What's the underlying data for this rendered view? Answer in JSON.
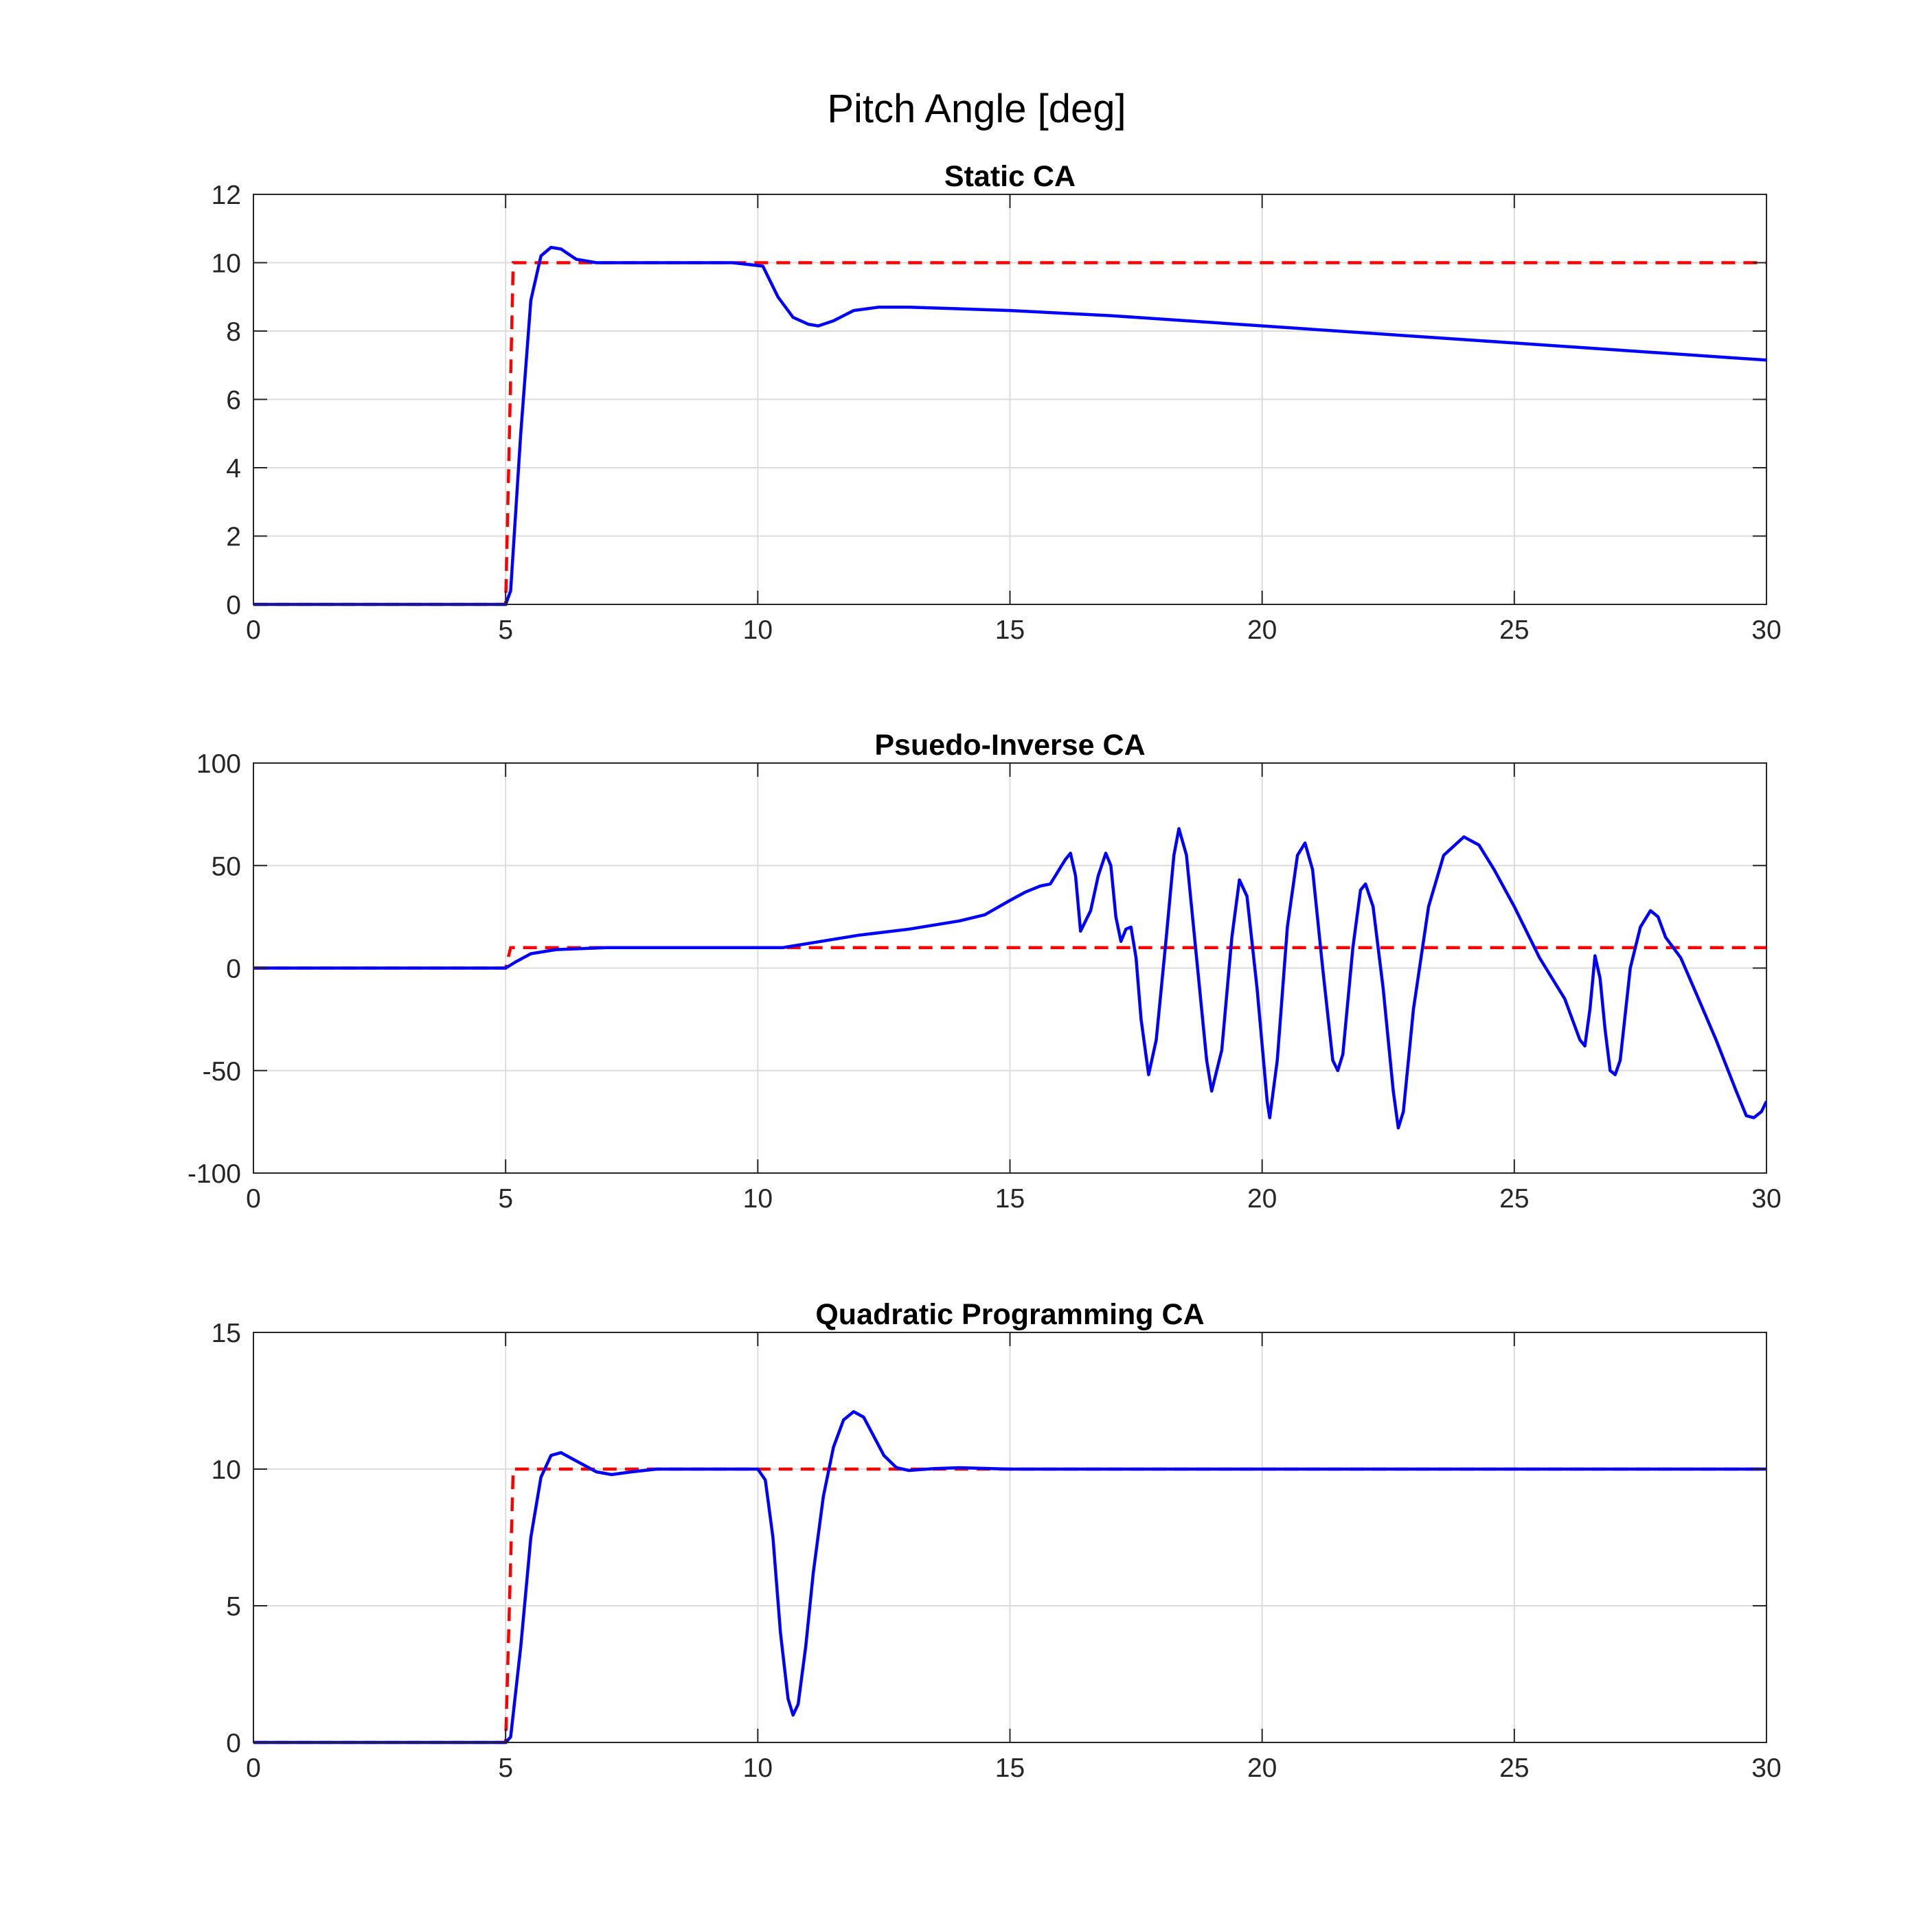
{
  "figure": {
    "title": "Pitch Angle [deg]"
  },
  "colors": {
    "reference": "#ff0000",
    "response": "#0000ff"
  },
  "chart_data": [
    {
      "type": "line",
      "title": "Static CA",
      "xlim": [
        0,
        30
      ],
      "ylim": [
        0,
        12
      ],
      "xticks": [
        0,
        5,
        10,
        15,
        20,
        25,
        30
      ],
      "yticks": [
        0,
        2,
        4,
        6,
        8,
        10,
        12
      ],
      "grid": true,
      "series": [
        {
          "style": "dashed",
          "color": "#ff0000",
          "x": [
            0,
            5,
            5,
            5.15,
            30
          ],
          "y": [
            0,
            0,
            0,
            10,
            10
          ]
        },
        {
          "style": "solid",
          "color": "#0000ff",
          "x": [
            0,
            5,
            5.1,
            5.3,
            5.5,
            5.7,
            5.9,
            6.1,
            6.4,
            6.8,
            7.5,
            8.5,
            9.5,
            10.1,
            10.4,
            10.7,
            11.0,
            11.2,
            11.5,
            11.9,
            12.4,
            13,
            15,
            17,
            20,
            23,
            25,
            27,
            30
          ],
          "y": [
            0,
            0,
            0.4,
            5,
            8.9,
            10.2,
            10.45,
            10.4,
            10.1,
            10.0,
            10.0,
            10.0,
            10.0,
            9.9,
            9.0,
            8.4,
            8.2,
            8.15,
            8.3,
            8.6,
            8.7,
            8.7,
            8.6,
            8.45,
            8.15,
            7.85,
            7.65,
            7.45,
            7.15
          ]
        }
      ]
    },
    {
      "type": "line",
      "title": "Psuedo-Inverse CA",
      "xlim": [
        0,
        30
      ],
      "ylim": [
        -100,
        100
      ],
      "xticks": [
        0,
        5,
        10,
        15,
        20,
        25,
        30
      ],
      "yticks": [
        -100,
        -50,
        0,
        50,
        100
      ],
      "grid": true,
      "series": [
        {
          "style": "dashed",
          "color": "#ff0000",
          "x": [
            0,
            5,
            5.1,
            30
          ],
          "y": [
            0,
            0,
            10,
            10
          ]
        },
        {
          "style": "solid",
          "color": "#0000ff",
          "x": [
            0,
            5,
            5.2,
            5.5,
            6,
            7,
            8,
            9,
            10,
            10.5,
            11,
            11.5,
            12,
            13,
            14,
            14.5,
            15,
            15.3,
            15.6,
            15.8,
            15.9,
            16.0,
            16.1,
            16.2,
            16.3,
            16.4,
            16.6,
            16.75,
            16.9,
            17.0,
            17.1,
            17.2,
            17.3,
            17.4,
            17.5,
            17.6,
            17.75,
            17.9,
            18.1,
            18.25,
            18.35,
            18.5,
            18.7,
            18.9,
            19.0,
            19.2,
            19.4,
            19.55,
            19.7,
            19.9,
            20.1,
            20.15,
            20.3,
            20.5,
            20.7,
            20.85,
            21.0,
            21.2,
            21.4,
            21.5,
            21.6,
            21.8,
            21.95,
            22.05,
            22.2,
            22.4,
            22.6,
            22.7,
            22.8,
            23.0,
            23.3,
            23.6,
            24.0,
            24.3,
            24.6,
            25,
            25.5,
            26,
            26.3,
            26.4,
            26.5,
            26.6,
            26.7,
            26.8,
            26.9,
            27.0,
            27.1,
            27.3,
            27.5,
            27.7,
            27.85,
            28.0,
            28.3,
            28.6,
            29.0,
            29.4,
            29.6,
            29.75,
            29.9,
            30
          ],
          "y": [
            0,
            0,
            3,
            7,
            9,
            10,
            10,
            10,
            10,
            10,
            12,
            14,
            16,
            19,
            23,
            26,
            33,
            37,
            40,
            41,
            45,
            49,
            53,
            56,
            45,
            18,
            28,
            45,
            56,
            50,
            25,
            13,
            19,
            20,
            5,
            -25,
            -52,
            -35,
            15,
            55,
            68,
            55,
            5,
            -45,
            -60,
            -40,
            15,
            43,
            35,
            -10,
            -65,
            -73,
            -45,
            20,
            55,
            61,
            48,
            0,
            -45,
            -50,
            -42,
            10,
            38,
            41,
            30,
            -10,
            -60,
            -78,
            -70,
            -20,
            30,
            55,
            64,
            60,
            48,
            30,
            5,
            -15,
            -35,
            -38,
            -20,
            6,
            -5,
            -30,
            -50,
            -52,
            -45,
            0,
            20,
            28,
            25,
            15,
            5,
            -12,
            -35,
            -60,
            -72,
            -73,
            -70,
            -65
          ]
        }
      ]
    },
    {
      "type": "line",
      "title": "Quadratic Programming CA",
      "xlim": [
        0,
        30
      ],
      "ylim": [
        0,
        15
      ],
      "xticks": [
        0,
        5,
        10,
        15,
        20,
        25,
        30
      ],
      "yticks": [
        0,
        5,
        10,
        15
      ],
      "grid": true,
      "series": [
        {
          "style": "dashed",
          "color": "#ff0000",
          "x": [
            0,
            5,
            5,
            5.15,
            30
          ],
          "y": [
            0,
            0,
            0,
            10,
            10
          ]
        },
        {
          "style": "solid",
          "color": "#0000ff",
          "x": [
            0,
            5,
            5.1,
            5.3,
            5.5,
            5.7,
            5.9,
            6.1,
            6.4,
            6.8,
            7.1,
            7.5,
            8,
            9,
            10.0,
            10.15,
            10.3,
            10.45,
            10.6,
            10.7,
            10.8,
            10.95,
            11.1,
            11.3,
            11.5,
            11.7,
            11.9,
            12.1,
            12.3,
            12.5,
            12.75,
            13,
            13.5,
            14,
            15,
            20,
            25,
            30
          ],
          "y": [
            0,
            0,
            0.2,
            3.5,
            7.5,
            9.7,
            10.5,
            10.6,
            10.3,
            9.9,
            9.8,
            9.9,
            10.0,
            10.0,
            10.0,
            9.6,
            7.5,
            4.0,
            1.6,
            1.0,
            1.4,
            3.5,
            6.2,
            9.0,
            10.8,
            11.8,
            12.1,
            11.9,
            11.2,
            10.5,
            10.05,
            9.95,
            10.02,
            10.05,
            10.0,
            10.0,
            10.0,
            10.0
          ]
        }
      ]
    }
  ]
}
